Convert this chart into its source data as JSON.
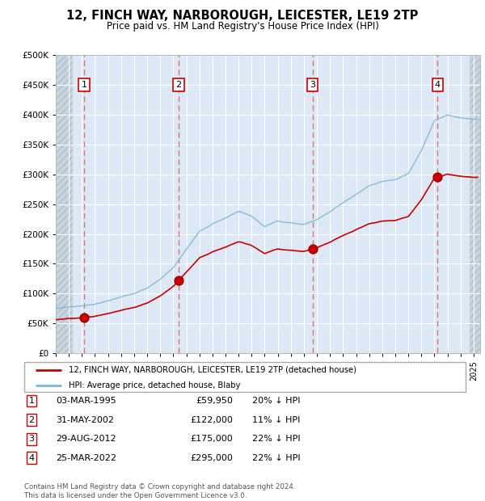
{
  "title": "12, FINCH WAY, NARBOROUGH, LEICESTER, LE19 2TP",
  "subtitle": "Price paid vs. HM Land Registry's House Price Index (HPI)",
  "transactions": [
    {
      "num": 1,
      "date_label": "03-MAR-1995",
      "year": 1995.17,
      "price": 59950,
      "pct": "20% ↓ HPI"
    },
    {
      "num": 2,
      "date_label": "31-MAY-2002",
      "year": 2002.41,
      "price": 122000,
      "pct": "11% ↓ HPI"
    },
    {
      "num": 3,
      "date_label": "29-AUG-2012",
      "year": 2012.66,
      "price": 175000,
      "pct": "22% ↓ HPI"
    },
    {
      "num": 4,
      "date_label": "25-MAR-2022",
      "year": 2022.23,
      "price": 295000,
      "pct": "22% ↓ HPI"
    }
  ],
  "hpi_anchors": [
    [
      1993.0,
      75000
    ],
    [
      1994.0,
      78000
    ],
    [
      1995.0,
      80000
    ],
    [
      1996.0,
      83000
    ],
    [
      1997.0,
      88000
    ],
    [
      1998.0,
      94000
    ],
    [
      1999.0,
      101000
    ],
    [
      2000.0,
      110000
    ],
    [
      2001.0,
      125000
    ],
    [
      2002.0,
      145000
    ],
    [
      2003.0,
      175000
    ],
    [
      2004.0,
      205000
    ],
    [
      2005.0,
      218000
    ],
    [
      2006.0,
      228000
    ],
    [
      2007.0,
      240000
    ],
    [
      2008.0,
      232000
    ],
    [
      2009.0,
      215000
    ],
    [
      2010.0,
      225000
    ],
    [
      2011.0,
      222000
    ],
    [
      2012.0,
      220000
    ],
    [
      2013.0,
      228000
    ],
    [
      2014.0,
      242000
    ],
    [
      2015.0,
      258000
    ],
    [
      2016.0,
      272000
    ],
    [
      2017.0,
      285000
    ],
    [
      2018.0,
      292000
    ],
    [
      2019.0,
      295000
    ],
    [
      2020.0,
      305000
    ],
    [
      2021.0,
      345000
    ],
    [
      2022.0,
      395000
    ],
    [
      2023.0,
      405000
    ],
    [
      2024.0,
      400000
    ],
    [
      2025.0,
      398000
    ]
  ],
  "hpi_line_color": "#7ab8d8",
  "price_line_color": "#cc0000",
  "marker_color": "#cc0000",
  "transaction_line_color": "#e87070",
  "ylim": [
    0,
    500000
  ],
  "yticks": [
    0,
    50000,
    100000,
    150000,
    200000,
    250000,
    300000,
    350000,
    400000,
    450000,
    500000
  ],
  "xlim": [
    1993,
    2025.5
  ],
  "xticks": [
    1993,
    1994,
    1995,
    1996,
    1997,
    1998,
    1999,
    2000,
    2001,
    2002,
    2003,
    2004,
    2005,
    2006,
    2007,
    2008,
    2009,
    2010,
    2011,
    2012,
    2013,
    2014,
    2015,
    2016,
    2017,
    2018,
    2019,
    2020,
    2021,
    2022,
    2023,
    2024,
    2025
  ],
  "legend_labels": [
    "12, FINCH WAY, NARBOROUGH, LEICESTER, LE19 2TP (detached house)",
    "HPI: Average price, detached house, Blaby"
  ],
  "footer": "Contains HM Land Registry data © Crown copyright and database right 2024.\nThis data is licensed under the Open Government Licence v3.0.",
  "table_rows": [
    [
      "1",
      "03-MAR-1995",
      "£59,950",
      "20% ↓ HPI"
    ],
    [
      "2",
      "31-MAY-2002",
      "£122,000",
      "11% ↓ HPI"
    ],
    [
      "3",
      "29-AUG-2012",
      "£175,000",
      "22% ↓ HPI"
    ],
    [
      "4",
      "25-MAR-2022",
      "£295,000",
      "22% ↓ HPI"
    ]
  ],
  "plot_bg": "#dce8f5",
  "hatch_bg": "#d0d8e0"
}
